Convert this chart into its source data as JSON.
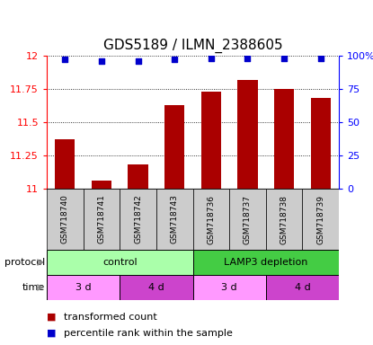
{
  "title": "GDS5189 / ILMN_2388605",
  "samples": [
    "GSM718740",
    "GSM718741",
    "GSM718742",
    "GSM718743",
    "GSM718736",
    "GSM718737",
    "GSM718738",
    "GSM718739"
  ],
  "bar_values": [
    11.37,
    11.06,
    11.18,
    11.63,
    11.73,
    11.82,
    11.75,
    11.68
  ],
  "percentile_values": [
    97,
    96,
    96,
    97,
    98,
    98,
    98,
    98
  ],
  "ylim": [
    11.0,
    12.0
  ],
  "yticks": [
    11.0,
    11.25,
    11.5,
    11.75,
    12.0
  ],
  "right_yticks": [
    0,
    25,
    50,
    75,
    100
  ],
  "bar_color": "#aa0000",
  "dot_color": "#0000cc",
  "protocol_light": "#aaffaa",
  "protocol_dark": "#44cc44",
  "time_light": "#ff99ff",
  "time_dark": "#cc44cc",
  "protocol_groups": [
    {
      "label": "control",
      "start": 0,
      "end": 4,
      "color_key": "protocol_light"
    },
    {
      "label": "LAMP3 depletion",
      "start": 4,
      "end": 8,
      "color_key": "protocol_dark"
    }
  ],
  "time_groups": [
    {
      "label": "3 d",
      "start": 0,
      "end": 2,
      "color_key": "time_light"
    },
    {
      "label": "4 d",
      "start": 2,
      "end": 4,
      "color_key": "time_dark"
    },
    {
      "label": "3 d",
      "start": 4,
      "end": 6,
      "color_key": "time_light"
    },
    {
      "label": "4 d",
      "start": 6,
      "end": 8,
      "color_key": "time_dark"
    }
  ],
  "title_fontsize": 11,
  "tick_fontsize": 8,
  "label_fontsize": 8,
  "legend_fontsize": 8,
  "sample_fontsize": 6.5
}
